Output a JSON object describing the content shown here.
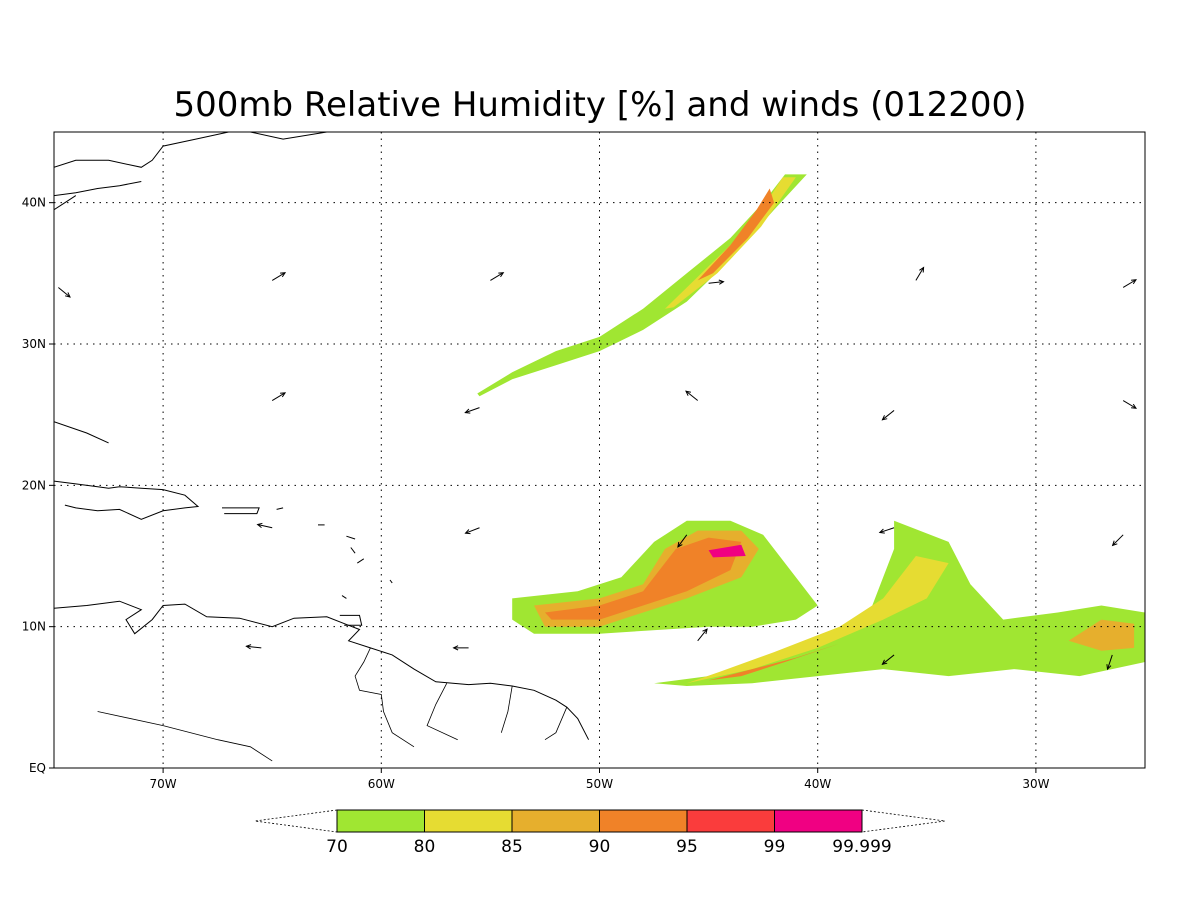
{
  "title": "500mb Relative Humidity [%] and winds (012200)",
  "map": {
    "lon_range": [
      -75,
      -25
    ],
    "lat_range": [
      0,
      45
    ],
    "grid": "dotted",
    "lon_ticks": [
      {
        "lon": -70,
        "label": "70W"
      },
      {
        "lon": -60,
        "label": "60W"
      },
      {
        "lon": -50,
        "label": "50W"
      },
      {
        "lon": -40,
        "label": "40W"
      },
      {
        "lon": -30,
        "label": "30W"
      }
    ],
    "lat_ticks": [
      {
        "lat": 0,
        "label": "EQ"
      },
      {
        "lat": 10,
        "label": "10N"
      },
      {
        "lat": 20,
        "label": "20N"
      },
      {
        "lat": 30,
        "label": "30N"
      },
      {
        "lat": 40,
        "label": "40N"
      }
    ]
  },
  "colorbar": {
    "colors": [
      "#a0e632",
      "#e6dc32",
      "#e6af2d",
      "#f08228",
      "#fa3c3c",
      "#f00082"
    ],
    "labels": [
      "70",
      "80",
      "85",
      "90",
      "95",
      "99",
      "99.999"
    ]
  },
  "chart_data": {
    "type": "heatmap",
    "title": "500mb Relative Humidity [%] and winds (012200)",
    "levels": [
      70,
      80,
      85,
      90,
      95,
      99,
      99.999
    ],
    "colors": [
      "#a0e632",
      "#e6dc32",
      "#e6af2d",
      "#f08228",
      "#fa3c3c",
      "#f00082"
    ],
    "regions": [
      {
        "name": "",
        "level": 0,
        "points": [
          [
            -55.6,
            26.5
          ],
          [
            -54,
            28
          ],
          [
            -52,
            29.5
          ],
          [
            -50,
            30.5
          ],
          [
            -48,
            32.5
          ],
          [
            -46,
            35
          ],
          [
            -44,
            37.5
          ],
          [
            -42.5,
            40
          ],
          [
            -41.5,
            42
          ],
          [
            -40.5,
            42
          ],
          [
            -42,
            39.5
          ],
          [
            -44,
            36
          ],
          [
            -46,
            33
          ],
          [
            -48,
            31
          ],
          [
            -50,
            29.5
          ],
          [
            -52,
            28.5
          ],
          [
            -54,
            27.5
          ],
          [
            -55.5,
            26.3
          ]
        ]
      },
      {
        "name": "",
        "level": 1,
        "points": [
          [
            -47,
            32.5
          ],
          [
            -45,
            35.5
          ],
          [
            -43,
            38.5
          ],
          [
            -41.6,
            41.8
          ],
          [
            -41,
            41.8
          ],
          [
            -42.6,
            38.3
          ],
          [
            -44.6,
            35
          ],
          [
            -46.6,
            32.6
          ]
        ]
      },
      {
        "name": "",
        "level": 3,
        "points": [
          [
            -45.5,
            34.5
          ],
          [
            -44,
            37
          ],
          [
            -42.8,
            39.5
          ],
          [
            -42.2,
            41
          ],
          [
            -42,
            40
          ],
          [
            -43.2,
            37.5
          ],
          [
            -44.8,
            35
          ]
        ]
      },
      {
        "name": "",
        "level": 0,
        "points": [
          [
            -54,
            12
          ],
          [
            -51,
            12.5
          ],
          [
            -49,
            13.5
          ],
          [
            -47.5,
            16
          ],
          [
            -46,
            17.5
          ],
          [
            -44,
            17.5
          ],
          [
            -42.5,
            16.5
          ],
          [
            -41,
            13.5
          ],
          [
            -40,
            11.5
          ],
          [
            -41,
            10.5
          ],
          [
            -43,
            10
          ],
          [
            -45,
            10
          ],
          [
            -47,
            9.8
          ],
          [
            -50,
            9.5
          ],
          [
            -53,
            9.5
          ],
          [
            -54,
            10.5
          ]
        ]
      },
      {
        "name": "",
        "level": 2,
        "points": [
          [
            -53,
            11.5
          ],
          [
            -50,
            12
          ],
          [
            -48,
            13
          ],
          [
            -47,
            15.5
          ],
          [
            -45.5,
            16.8
          ],
          [
            -43.5,
            16.8
          ],
          [
            -42.7,
            15.5
          ],
          [
            -43.5,
            13.5
          ],
          [
            -46,
            12
          ],
          [
            -48,
            11
          ],
          [
            -50,
            10
          ],
          [
            -52.5,
            10
          ]
        ]
      },
      {
        "name": "",
        "level": 3,
        "points": [
          [
            -52.5,
            11
          ],
          [
            -50,
            11.5
          ],
          [
            -48,
            12.5
          ],
          [
            -46.5,
            15.5
          ],
          [
            -45,
            16.3
          ],
          [
            -43.5,
            16
          ],
          [
            -44,
            14
          ],
          [
            -46,
            12.5
          ],
          [
            -48,
            11.5
          ],
          [
            -50,
            10.5
          ],
          [
            -52.2,
            10.5
          ]
        ]
      },
      {
        "name": "",
        "level": 5,
        "points": [
          [
            -45,
            15.4
          ],
          [
            -43.5,
            15.8
          ],
          [
            -43.3,
            15
          ],
          [
            -44.8,
            14.9
          ]
        ]
      },
      {
        "name": "",
        "level": 0,
        "points": [
          [
            -47.5,
            6
          ],
          [
            -45,
            6.5
          ],
          [
            -42,
            8
          ],
          [
            -39,
            9.5
          ],
          [
            -37.5,
            11.5
          ],
          [
            -36.5,
            15.5
          ],
          [
            -36.5,
            17.5
          ],
          [
            -34,
            16
          ],
          [
            -33,
            13
          ],
          [
            -31.5,
            10.5
          ],
          [
            -29,
            11
          ],
          [
            -27,
            11.5
          ],
          [
            -25,
            11
          ],
          [
            -25,
            7.5
          ],
          [
            -28,
            6.5
          ],
          [
            -31,
            7
          ],
          [
            -34,
            6.5
          ],
          [
            -37,
            7
          ],
          [
            -40,
            6.5
          ],
          [
            -43,
            6
          ],
          [
            -46,
            5.8
          ]
        ]
      },
      {
        "name": "",
        "level": 1,
        "points": [
          [
            -46,
            6
          ],
          [
            -43,
            7
          ],
          [
            -40,
            8.5
          ],
          [
            -37,
            10.5
          ],
          [
            -35,
            12
          ],
          [
            -34,
            14.5
          ],
          [
            -35.5,
            15
          ],
          [
            -37,
            12
          ],
          [
            -39,
            10
          ],
          [
            -42,
            8.2
          ],
          [
            -44.5,
            6.8
          ]
        ]
      },
      {
        "name": "",
        "level": 3,
        "points": [
          [
            -45,
            6.2
          ],
          [
            -43,
            7
          ],
          [
            -41,
            7.8
          ],
          [
            -39,
            8.8
          ],
          [
            -41.5,
            7.5
          ],
          [
            -43.5,
            6.5
          ]
        ]
      },
      {
        "name": "",
        "level": 2,
        "points": [
          [
            -28.5,
            9
          ],
          [
            -27,
            10.5
          ],
          [
            -25.5,
            10.2
          ],
          [
            -25.5,
            8.5
          ],
          [
            -27,
            8.3
          ]
        ]
      }
    ]
  },
  "winds": {
    "arrows": [
      {
        "lon": -74.8,
        "lat": 34,
        "u": 0.55,
        "v": -0.45
      },
      {
        "lon": -65,
        "lat": 34.5,
        "u": 0.75,
        "v": 0.45
      },
      {
        "lon": -55,
        "lat": 34.5,
        "u": 0.75,
        "v": 0.45
      },
      {
        "lon": -45,
        "lat": 34.3,
        "u": 0.95,
        "v": 0.1
      },
      {
        "lon": -35.5,
        "lat": 34.5,
        "u": 0.45,
        "v": 0.75
      },
      {
        "lon": -26,
        "lat": 34,
        "u": 0.75,
        "v": 0.45
      },
      {
        "lon": -65,
        "lat": 26,
        "u": 0.75,
        "v": 0.45
      },
      {
        "lon": -55.5,
        "lat": 25.5,
        "u": -0.85,
        "v": -0.3
      },
      {
        "lon": -45.5,
        "lat": 26,
        "u": -0.75,
        "v": 0.6
      },
      {
        "lon": -36.5,
        "lat": 25.3,
        "u": -0.75,
        "v": -0.6
      },
      {
        "lon": -26,
        "lat": 26,
        "u": 0.75,
        "v": -0.45
      },
      {
        "lon": -65,
        "lat": 17,
        "u": -0.9,
        "v": 0.2
      },
      {
        "lon": -55.5,
        "lat": 17,
        "u": -0.9,
        "v": -0.35
      },
      {
        "lon": -46,
        "lat": 16.5,
        "u": -0.55,
        "v": -0.75
      },
      {
        "lon": -36.5,
        "lat": 17,
        "u": -0.9,
        "v": -0.3
      },
      {
        "lon": -26,
        "lat": 16.5,
        "u": -0.7,
        "v": -0.7
      },
      {
        "lon": -65.5,
        "lat": 8.5,
        "u": -0.95,
        "v": 0.1
      },
      {
        "lon": -56,
        "lat": 8.5,
        "u": -0.95,
        "v": 0.0
      },
      {
        "lon": -45.5,
        "lat": 9,
        "u": 0.6,
        "v": 0.75
      },
      {
        "lon": -36.5,
        "lat": 8,
        "u": -0.75,
        "v": -0.6
      },
      {
        "lon": -26.5,
        "lat": 8,
        "u": -0.3,
        "v": -0.9
      }
    ]
  },
  "coastlines": [
    [
      [
        -75,
        42.5
      ],
      [
        -74,
        43
      ],
      [
        -72.5,
        43
      ],
      [
        -71,
        42.5
      ],
      [
        -70.5,
        43
      ],
      [
        -70,
        44
      ],
      [
        -68.5,
        44.5
      ],
      [
        -67,
        45
      ],
      [
        -66,
        45
      ]
    ],
    [
      [
        -66,
        45
      ],
      [
        -64.5,
        44.5
      ],
      [
        -62.5,
        45
      ],
      [
        -61,
        45
      ]
    ],
    [
      [
        -75,
        40.5
      ],
      [
        -74,
        40.7
      ],
      [
        -73,
        41
      ],
      [
        -72,
        41.2
      ],
      [
        -71,
        41.5
      ]
    ],
    [
      [
        -75,
        39.5
      ],
      [
        -74.5,
        40
      ],
      [
        -74,
        40.5
      ]
    ],
    [
      [
        -75,
        24.5
      ],
      [
        -73.5,
        23.7
      ],
      [
        -72.5,
        23
      ]
    ],
    [
      [
        -75,
        20.3
      ],
      [
        -74,
        20.1
      ],
      [
        -73,
        19.9
      ],
      [
        -72.5,
        19.8
      ],
      [
        -72,
        19.9
      ],
      [
        -71,
        19.8
      ],
      [
        -70,
        19.7
      ],
      [
        -69,
        19.3
      ],
      [
        -68.4,
        18.5
      ],
      [
        -69,
        18.4
      ],
      [
        -70,
        18.2
      ],
      [
        -71,
        17.6
      ],
      [
        -72,
        18.3
      ],
      [
        -73,
        18.2
      ],
      [
        -74,
        18.4
      ],
      [
        -74.5,
        18.6
      ]
    ],
    [
      [
        -67.3,
        18.4
      ],
      [
        -65.6,
        18.4
      ],
      [
        -65.7,
        18
      ],
      [
        -67.2,
        18
      ]
    ],
    [
      [
        -75,
        11.3
      ],
      [
        -73.5,
        11.5
      ],
      [
        -72,
        11.8
      ],
      [
        -71,
        11.2
      ],
      [
        -71.7,
        10.5
      ],
      [
        -71.3,
        9.5
      ],
      [
        -70.5,
        10.5
      ],
      [
        -70,
        11.5
      ],
      [
        -69,
        11.6
      ],
      [
        -68,
        10.7
      ],
      [
        -66.5,
        10.6
      ],
      [
        -65,
        10
      ],
      [
        -64,
        10.6
      ],
      [
        -62.5,
        10.7
      ],
      [
        -61.5,
        10.1
      ],
      [
        -61,
        9.8
      ],
      [
        -61.5,
        9
      ],
      [
        -60.5,
        8.5
      ],
      [
        -59.5,
        8
      ],
      [
        -58.5,
        7
      ],
      [
        -57.5,
        6.1
      ],
      [
        -56,
        5.9
      ],
      [
        -55,
        6
      ],
      [
        -54,
        5.8
      ],
      [
        -53,
        5.5
      ],
      [
        -52,
        4.8
      ],
      [
        -51.5,
        4.3
      ],
      [
        -51,
        3.5
      ],
      [
        -50.5,
        2
      ]
    ],
    [
      [
        -61.9,
        10.8
      ],
      [
        -61,
        10.8
      ],
      [
        -60.9,
        10.1
      ],
      [
        -61.7,
        10.1
      ]
    ],
    [
      [
        -60.8,
        14.8
      ],
      [
        -61.1,
        14.5
      ]
    ],
    [
      [
        -61.4,
        15.6
      ],
      [
        -61.2,
        15.2
      ]
    ],
    [
      [
        -61.6,
        16.4
      ],
      [
        -61.2,
        16.2
      ]
    ],
    [
      [
        -62.9,
        17.2
      ],
      [
        -62.6,
        17.2
      ]
    ],
    [
      [
        -64.8,
        18.3
      ],
      [
        -64.5,
        18.4
      ]
    ],
    [
      [
        -59.6,
        13.3
      ],
      [
        -59.5,
        13.1
      ]
    ],
    [
      [
        -61.8,
        12.2
      ],
      [
        -61.6,
        12.0
      ]
    ]
  ],
  "borders": [
    [
      [
        -73.5,
        45
      ],
      [
        -71.5,
        45
      ],
      [
        -70,
        45.5
      ],
      [
        -69,
        47
      ]
    ],
    [
      [
        -73,
        4
      ],
      [
        -70,
        3
      ],
      [
        -67.5,
        2
      ],
      [
        -66,
        1.5
      ],
      [
        -65,
        0.5
      ]
    ],
    [
      [
        -60.5,
        8.5
      ],
      [
        -60.8,
        7.5
      ],
      [
        -61.2,
        6.5
      ],
      [
        -61,
        5.5
      ],
      [
        -60,
        5.2
      ],
      [
        -59.9,
        4
      ],
      [
        -59.5,
        2.5
      ],
      [
        -58.5,
        1.5
      ]
    ],
    [
      [
        -57,
        6
      ],
      [
        -57.5,
        4.5
      ],
      [
        -57.9,
        3
      ],
      [
        -56.5,
        2
      ]
    ],
    [
      [
        -54,
        5.8
      ],
      [
        -54.2,
        4
      ],
      [
        -54.5,
        2.5
      ]
    ],
    [
      [
        -51.5,
        4.3
      ],
      [
        -52,
        2.5
      ],
      [
        -52.5,
        2
      ]
    ]
  ]
}
